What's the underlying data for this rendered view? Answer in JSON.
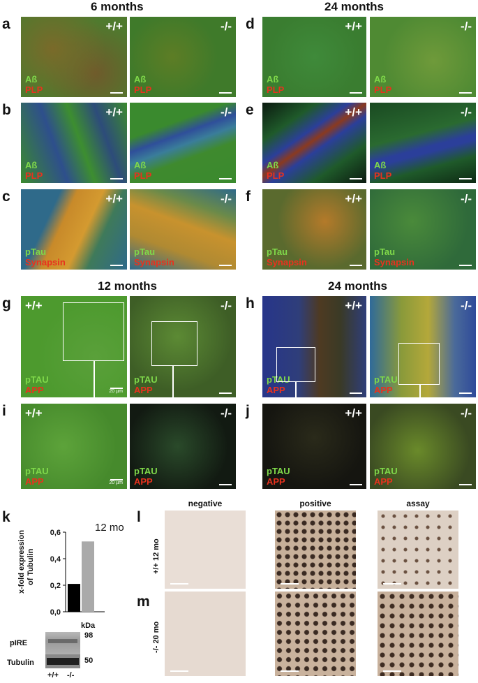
{
  "headers": {
    "six_months": "6 months",
    "twentyfour_months_top": "24 months",
    "twelve_months": "12 months",
    "twentyfour_months_mid": "24 months"
  },
  "panels": {
    "a": "a",
    "b": "b",
    "c": "c",
    "d": "d",
    "e": "e",
    "f": "f",
    "g": "g",
    "h": "h",
    "i": "i",
    "j": "j",
    "k": "k",
    "l": "l",
    "m": "m"
  },
  "genotypes": {
    "wt": "+/+",
    "ko": "-/-"
  },
  "stains": {
    "abeta": "Aß",
    "plp": "PLP",
    "ptau": "pTau",
    "synapsin": "Synapsin",
    "ptau_caps": "pTAU",
    "app": "APP"
  },
  "scalebars": {
    "g_wt": "20 µm",
    "i_wt": "20 µm"
  },
  "chart": {
    "ylabel_line1": "x-fold expression",
    "ylabel_line2": "of Tubulin",
    "annotation": "12 mo",
    "ticks": [
      "0,0",
      "0,2",
      "0,4",
      "0,6"
    ],
    "xticks": [
      "+/+",
      "-/-"
    ]
  },
  "chart_data": {
    "type": "bar",
    "categories": [
      "+/+",
      "-/-"
    ],
    "values": [
      0.21,
      0.53
    ],
    "ylabel": "x-fold expression of Tubulin",
    "ylim": [
      0,
      0.6
    ],
    "colors": [
      "#000000",
      "#aaaaaa"
    ],
    "annotation": "12 mo"
  },
  "western": {
    "kda_label": "kDa",
    "bands": [
      {
        "name": "pIRE",
        "kda": "98"
      },
      {
        "name": "Tubulin",
        "kda": "50"
      }
    ]
  },
  "ihc": {
    "columns": [
      "negative",
      "positive",
      "assay"
    ],
    "rows": [
      "+/+ 12 mo",
      "-/- 20 mo"
    ]
  }
}
